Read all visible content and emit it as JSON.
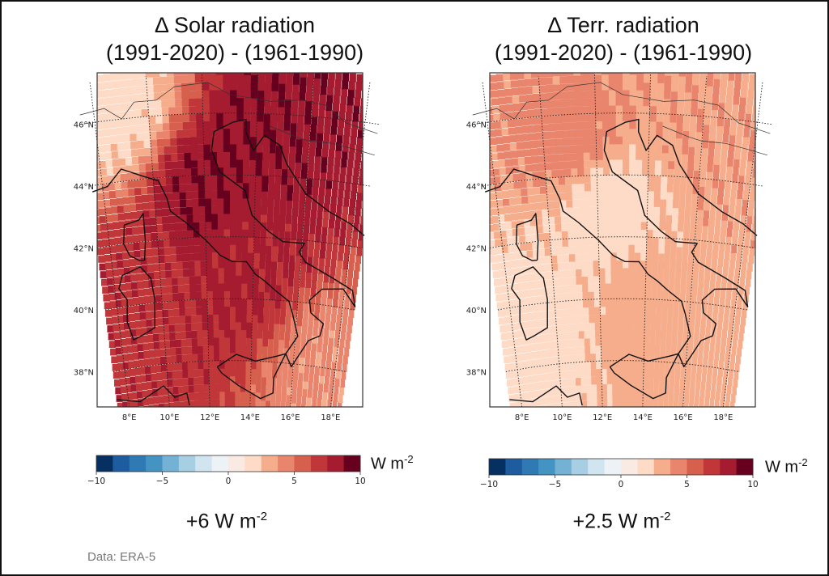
{
  "source_note": "Data: ERA-5",
  "colorbar": {
    "min": -10,
    "max": 10,
    "levels": 16,
    "ticks": [
      -10,
      -5,
      0,
      5,
      10
    ],
    "tick_labels": [
      "−10",
      "−5",
      "0",
      "5",
      "10"
    ],
    "unit_base": "W m",
    "unit_exp": "-2",
    "colors": [
      "#053061",
      "#1c5c9f",
      "#2f79b5",
      "#4393c3",
      "#74b2d5",
      "#a7cfe4",
      "#d1e5f0",
      "#ecf2f5",
      "#f9ebe3",
      "#fddbc7",
      "#f5ad8c",
      "#e9846d",
      "#d6604d",
      "#c13639",
      "#a51b2f",
      "#67001f"
    ]
  },
  "chart_data": [
    {
      "type": "heatmap",
      "title_line1": "Δ Solar radiation",
      "title_line2": "(1991-2020) - (1961-1990)",
      "variable": "Change in solar radiation",
      "period_diff": "(1991-2020) - (1961-1990)",
      "units": "W m-2",
      "xlabel": "",
      "ylabel": "",
      "lon_ticks": [
        "8°E",
        "10°E",
        "12°E",
        "14°E",
        "16°E",
        "18°E"
      ],
      "lat_ticks": [
        "46°N",
        "44°N",
        "42°N",
        "40°N",
        "38°N"
      ],
      "lon_range": [
        7.5,
        18.5
      ],
      "lat_range": [
        36.5,
        47.3
      ],
      "value_range": [
        -10,
        10
      ],
      "domain_mean_label": "+6 W m",
      "domain_mean_exp": "-2",
      "domain_mean": 6,
      "field_description": "Positive everywhere; strongest (~8-10) over central Italy, Po valley and northern Adriatic; weakest (~0-2) over western Alps/Switzerland; ~4-6 over seas",
      "hotspots": [
        {
          "lon": 12.0,
          "lat": 43.4,
          "value": 9.5
        },
        {
          "lon": 14.5,
          "lat": 45.3,
          "value": 9.5
        },
        {
          "lon": 13.5,
          "lat": 41.5,
          "value": 8.5
        },
        {
          "lon": 9.0,
          "lat": 40.5,
          "value": 7.5
        },
        {
          "lon": 8.7,
          "lat": 46.3,
          "value": 0.5
        },
        {
          "lon": 17.5,
          "lat": 37.5,
          "value": 3.5
        }
      ],
      "grid": true,
      "colormap": "RdBu_r"
    },
    {
      "type": "heatmap",
      "title_line1": "Δ Terr. radiation",
      "title_line2": "(1991-2020) - (1961-1990)",
      "variable": "Change in terrestrial radiation",
      "period_diff": "(1991-2020) - (1961-1990)",
      "units": "W m-2",
      "xlabel": "",
      "ylabel": "",
      "lon_ticks": [
        "8°E",
        "10°E",
        "12°E",
        "14°E",
        "16°E",
        "18°E"
      ],
      "lat_ticks": [
        "46°N",
        "44°N",
        "42°N",
        "40°N",
        "38°N"
      ],
      "lon_range": [
        7.5,
        18.5
      ],
      "lat_range": [
        36.5,
        47.3
      ],
      "value_range": [
        -10,
        10
      ],
      "domain_mean_label": "+2.5 W m",
      "domain_mean_exp": "-2",
      "domain_mean": 2.5,
      "field_description": "Positive everywhere; ~4-5 over Po valley/Alps and Balkans; ~1-2 over Tyrrhenian sea and central Italy; ~3 over southern Italy and Ionian",
      "hotspots": [
        {
          "lon": 11.0,
          "lat": 45.2,
          "value": 5.0
        },
        {
          "lon": 16.5,
          "lat": 45.5,
          "value": 4.0
        },
        {
          "lon": 14.0,
          "lat": 39.5,
          "value": 3.5
        },
        {
          "lon": 12.3,
          "lat": 43.0,
          "value": 1.5
        },
        {
          "lon": 9.0,
          "lat": 39.0,
          "value": 1.5
        }
      ],
      "grid": true,
      "colormap": "RdBu_r"
    }
  ]
}
